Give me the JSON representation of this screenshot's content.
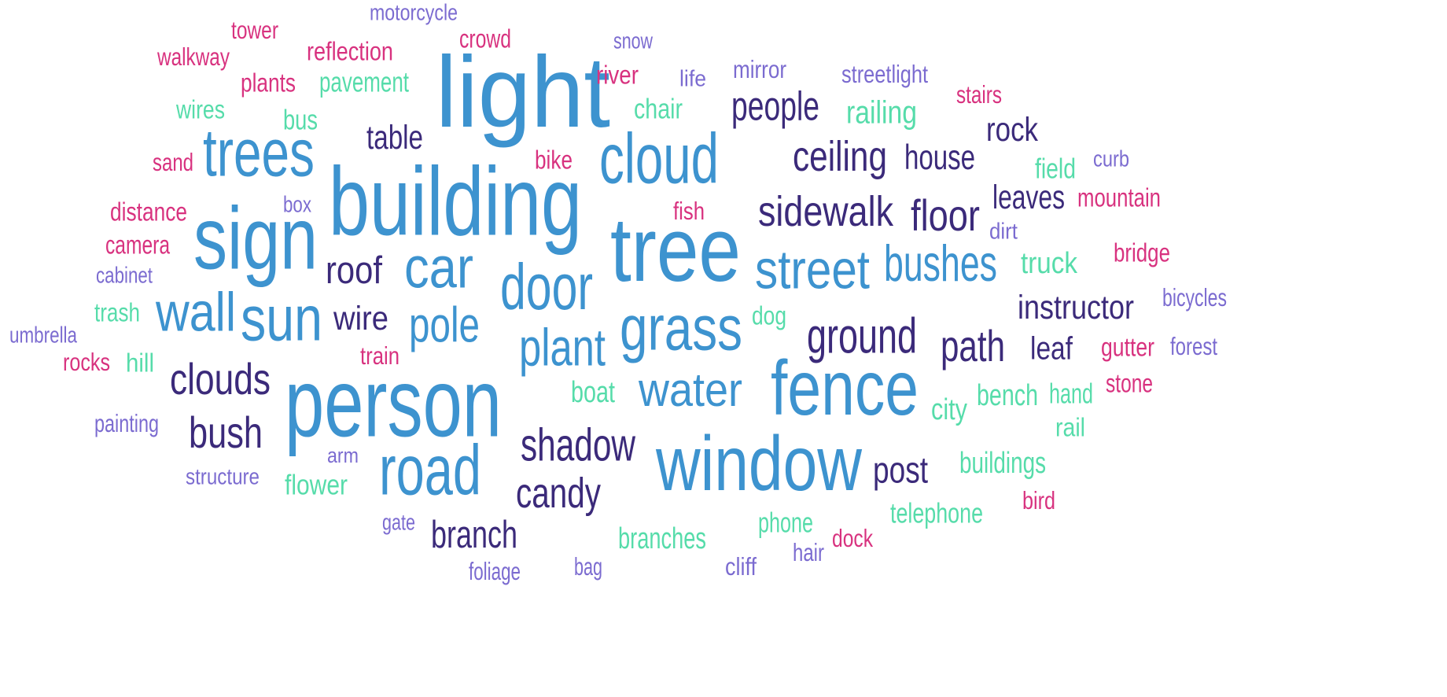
{
  "palette": {
    "blue": "#3d93cf",
    "navy": "#3b2a7a",
    "mint": "#56dcaa",
    "magenta": "#d8327f",
    "lavender": "#7b6bd0"
  },
  "words": {
    "light": "light",
    "building": "building",
    "tree": "tree",
    "person": "person",
    "sign": "sign",
    "window": "window",
    "fence": "fence",
    "trees": "trees",
    "cloud": "cloud",
    "car": "car",
    "door": "door",
    "sun": "sun",
    "road": "road",
    "grass": "grass",
    "street": "street",
    "wall": "wall",
    "pole": "pole",
    "plant": "plant",
    "water": "water",
    "bushes": "bushes",
    "sidewalk": "sidewalk",
    "ground": "ground",
    "shadow": "shadow",
    "floor": "floor",
    "path": "path",
    "ceiling": "ceiling",
    "people": "people",
    "clouds": "clouds",
    "bush": "bush",
    "candy": "candy",
    "branch": "branch",
    "roof": "roof",
    "instructor": "instructor",
    "house": "house",
    "post": "post",
    "wire": "wire",
    "leaves": "leaves",
    "table": "table",
    "rock": "rock",
    "leaf": "leaf",
    "railing": "railing",
    "bench": "bench",
    "buildings": "buildings",
    "telephone": "telephone",
    "branches": "branches",
    "truck": "truck",
    "boat": "boat",
    "city": "city",
    "pavement": "pavement",
    "chair": "chair",
    "flower": "flower",
    "phone": "phone",
    "hand": "hand",
    "field": "field",
    "bus": "bus",
    "wires": "wires",
    "trash": "trash",
    "dog": "dog",
    "hill": "hill",
    "rail": "rail",
    "reflection": "reflection",
    "mountain": "mountain",
    "distance": "distance",
    "camera": "camera",
    "walkway": "walkway",
    "plants": "plants",
    "crowd": "crowd",
    "river": "river",
    "tower": "tower",
    "stairs": "stairs",
    "bridge": "bridge",
    "gutter": "gutter",
    "stone": "stone",
    "bike": "bike",
    "sand": "sand",
    "fish": "fish",
    "rocks": "rocks",
    "train": "train",
    "bird": "bird",
    "dock": "dock",
    "motorcycle": "motorcycle",
    "streetlight": "streetlight",
    "mirror": "mirror",
    "snow": "snow",
    "life": "life",
    "curb": "curb",
    "box": "box",
    "dirt": "dirt",
    "cabinet": "cabinet",
    "bicycles": "bicycles",
    "umbrella": "umbrella",
    "forest": "forest",
    "painting": "painting",
    "arm": "arm",
    "structure": "structure",
    "gate": "gate",
    "bag": "bag",
    "cliff": "cliff",
    "hair": "hair",
    "foliage": "foliage"
  }
}
